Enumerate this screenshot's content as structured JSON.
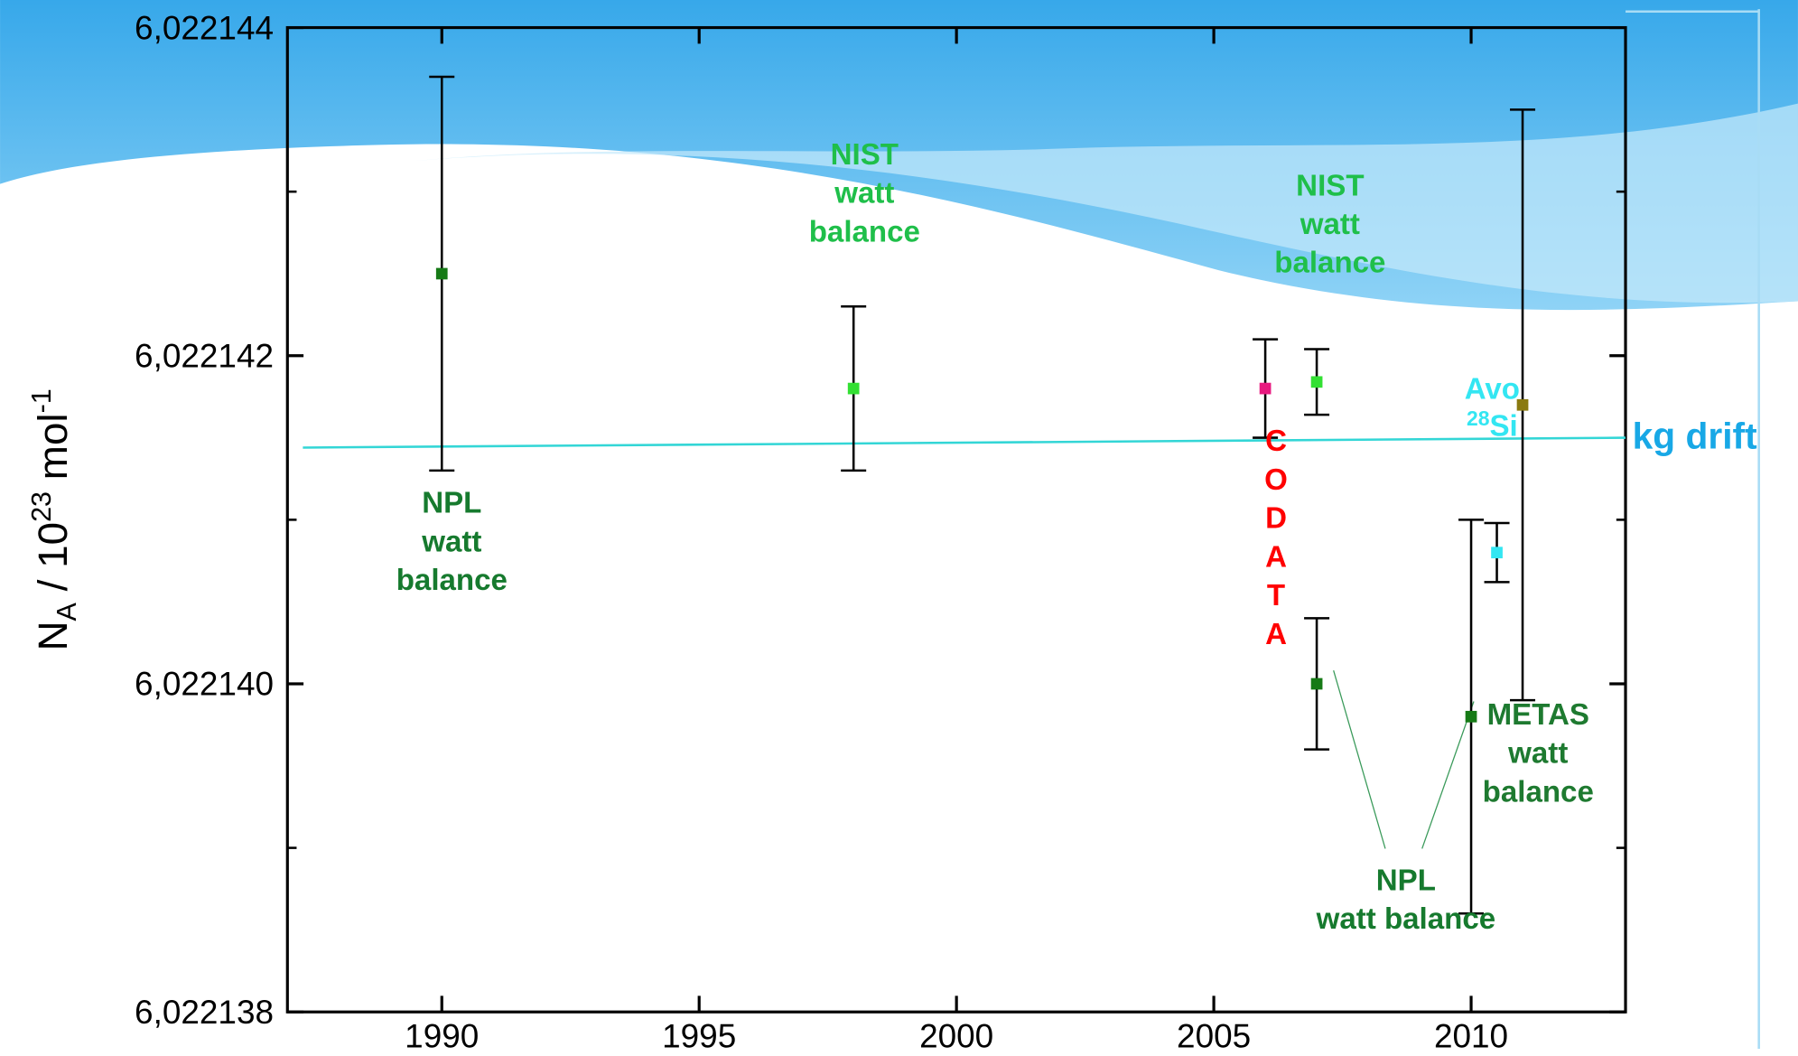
{
  "chart_data": {
    "type": "errorbar",
    "y_label": {
      "base": "N",
      "sub": "A",
      "middle": " / 10",
      "sup": "23",
      "unit": " mol",
      "unit_sup": "-1"
    },
    "xlim": [
      1987,
      2013
    ],
    "xticks": [
      1990,
      1995,
      2000,
      2005,
      2010
    ],
    "ylim": [
      6.022138,
      6.022144
    ],
    "yticks": [
      {
        "value": 6.022138,
        "label": "6,022138"
      },
      {
        "value": 6.02214,
        "label": "6,022140"
      },
      {
        "value": 6.022142,
        "label": "6,022142"
      },
      {
        "value": 6.022144,
        "label": "6,022144"
      }
    ],
    "yminor": [
      6.022139,
      6.022141,
      6.022143
    ],
    "series": [
      {
        "color": "#167a16",
        "x": [
          1990,
          2007,
          2010
        ],
        "values": [
          6.0221425,
          6.02214,
          6.0221398
        ],
        "errors": [
          1.2e-06,
          4e-07,
          1.2e-06
        ]
      },
      {
        "color": "#33e033",
        "x": [
          1998,
          2007
        ],
        "values": [
          6.0221418,
          6.02214184
        ],
        "errors": [
          5e-07,
          2e-07
        ]
      },
      {
        "color": "#e8197f",
        "x": [
          2006
        ],
        "values": [
          6.0221418
        ],
        "errors": [
          3e-07
        ]
      },
      {
        "color": "#33e6f2",
        "x": [
          2010.5
        ],
        "values": [
          6.0221408
        ],
        "errors": [
          1.8e-07
        ]
      },
      {
        "color": "#8a7a10",
        "x": [
          2011
        ],
        "values": [
          6.0221417
        ],
        "errors": [
          1.8e-06
        ]
      }
    ],
    "drift": {
      "color": "#33d6d6",
      "x": [
        1987.3,
        2013
      ],
      "values": [
        6.02214144,
        6.0221415
      ]
    },
    "annotations": [
      {
        "lines": [
          "NPL",
          "watt",
          "balance"
        ],
        "color": "#167a2e"
      },
      {
        "lines": [
          "NIST",
          "watt",
          "balance"
        ],
        "color": "#1fbf4a"
      },
      {
        "lines": [
          "NIST",
          "watt",
          "balance"
        ],
        "color": "#1fbf4a"
      },
      {
        "text": "CODATA",
        "color": "#ff0000"
      },
      {
        "lines": [
          "Avo"
        ],
        "color": "#33e6f2"
      },
      {
        "sup": "28",
        "text": "Si",
        "color": "#33e6f2"
      },
      {
        "lines": [
          "METAS",
          "watt",
          "balance"
        ],
        "color": "#1e7a30"
      },
      {
        "lines": [
          "NPL",
          "watt balance"
        ],
        "color": "#167a2e"
      },
      {
        "text": "kg drift",
        "color": "#18a8e6"
      }
    ]
  }
}
